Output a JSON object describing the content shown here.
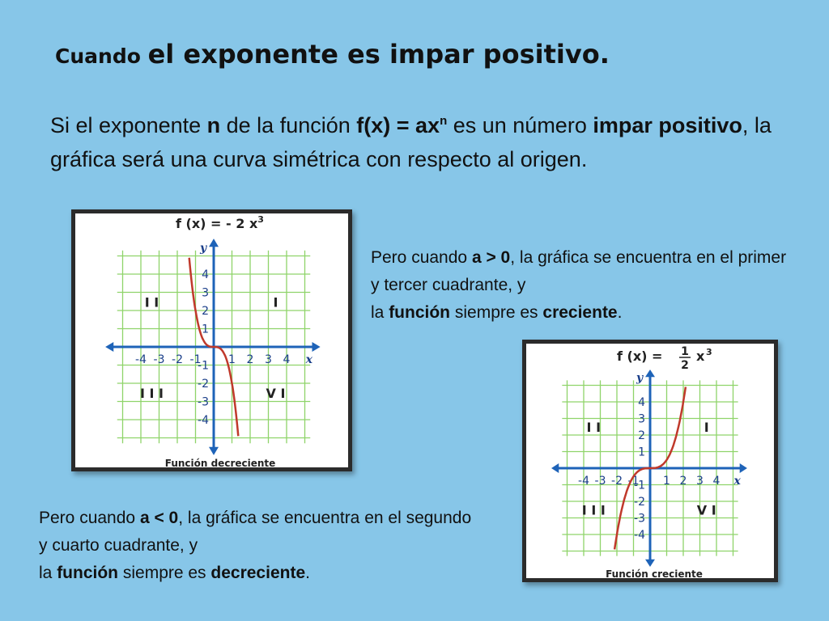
{
  "title": {
    "part1": "Cuando ",
    "part2": "el exponente es impar positivo."
  },
  "intro": {
    "t1": "Si el exponente ",
    "b1": "n",
    "t2": " de la función ",
    "b2": "f(x) = ax",
    "sup": "n",
    "t3": " es un número ",
    "b3": "impar positivo",
    "t4": ", la gráfica será una curva simétrica con respecto al origen."
  },
  "note_positive": {
    "t1": "Pero cuando ",
    "b1": "a > 0",
    "t2": ", la gráfica se encuentra en el primer y tercer cuadrante, y",
    "t3": "la ",
    "b2": "función",
    "t4": " siempre es ",
    "b3": "creciente",
    "t5": "."
  },
  "note_negative": {
    "t1": "Pero cuando ",
    "b1": "a < 0",
    "t2": ", la gráfica se encuentra en el segundo y cuarto cuadrante, y",
    "t3": "la ",
    "b2": "función",
    "t4": " siempre es ",
    "b3": "decreciente",
    "t5": "."
  },
  "colors": {
    "background": "#87c6e8",
    "grid": "#8fd46a",
    "axis": "#1e63b8",
    "curve": "#c0392b"
  },
  "chart_data": [
    {
      "type": "line",
      "function": "f(x) = - 2 x³",
      "formula_prefix": "f (x) = ",
      "formula_coef": "- 2 x",
      "formula_exp": "3",
      "coefficient": -2,
      "exponent": 3,
      "xlim": [
        -4,
        4
      ],
      "ylim": [
        -4,
        4
      ],
      "x_ticks": [
        "-4",
        "-3",
        "-2",
        "-1",
        "1",
        "2",
        "3",
        "4"
      ],
      "y_ticks": [
        "4",
        "3",
        "2",
        "1",
        "-1",
        "-2",
        "-3",
        "-4"
      ],
      "x_axis_label": "x",
      "y_axis_label": "y",
      "quadrants": [
        "I",
        "I I",
        "I I I",
        "V I"
      ],
      "caption": "Función decreciente",
      "grid": true
    },
    {
      "type": "line",
      "function": "f(x) = 1/2 x³",
      "formula_prefix": "f (x) = ",
      "formula_num": "1",
      "formula_den": "2",
      "formula_coef": "x",
      "formula_exp": "3",
      "coefficient": 0.5,
      "exponent": 3,
      "xlim": [
        -4,
        4
      ],
      "ylim": [
        -4,
        4
      ],
      "x_ticks": [
        "-4",
        "-3",
        "-2",
        "-1",
        "1",
        "2",
        "3",
        "4"
      ],
      "y_ticks": [
        "4",
        "3",
        "2",
        "1",
        "-1",
        "-2",
        "-3",
        "-4"
      ],
      "x_axis_label": "x",
      "y_axis_label": "y",
      "quadrants": [
        "I",
        "I I",
        "I I I",
        "V I"
      ],
      "caption": "Función creciente",
      "grid": true
    }
  ]
}
